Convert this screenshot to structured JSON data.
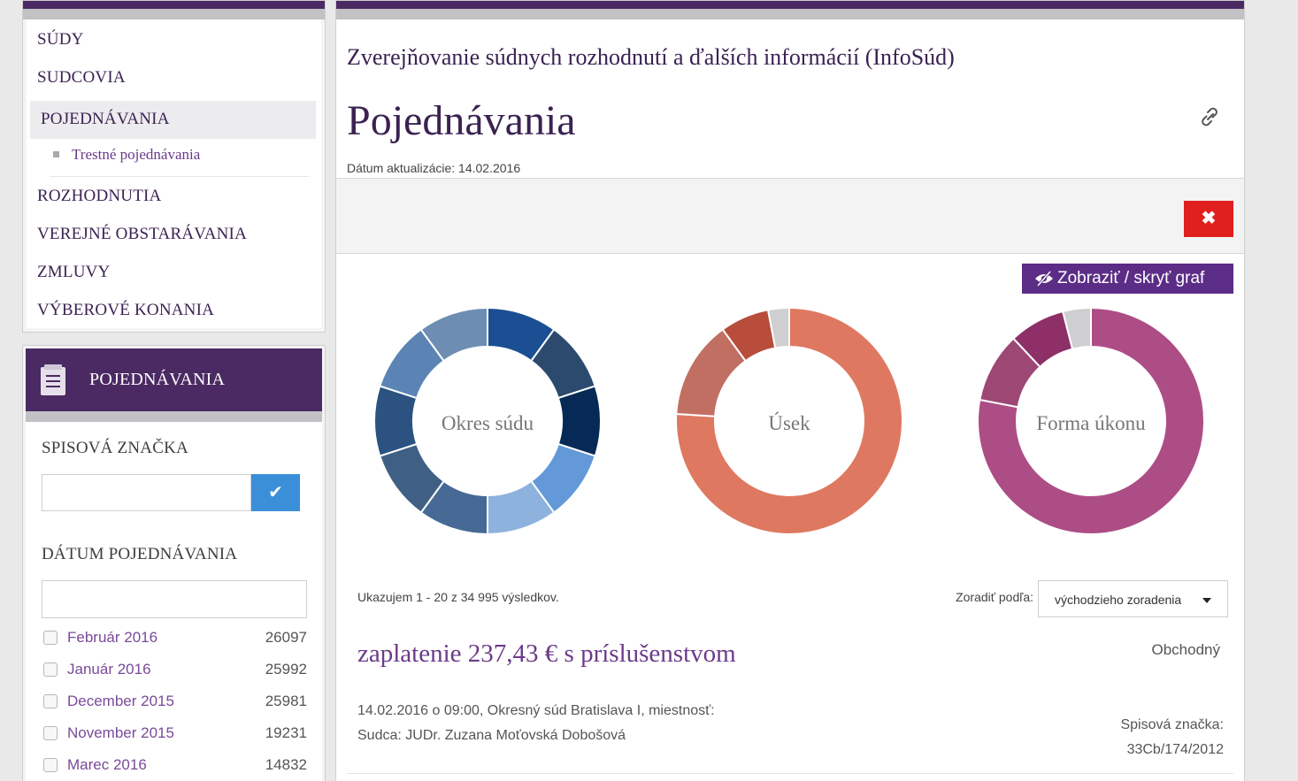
{
  "nav": {
    "items": [
      "SÚDY",
      "SUDCOVIA",
      "POJEDNÁVANIA",
      "ROZHODNUTIA",
      "VEREJNÉ OBSTARÁVANIA",
      "ZMLUVY",
      "VÝBEROVÉ KONANIA"
    ],
    "active_index": 2,
    "subitem": "Trestné pojednávania"
  },
  "filters": {
    "panel_title": "POJEDNÁVANIA",
    "spis_label": "SPISOVÁ ZNAČKA",
    "spis_value": "",
    "date_label": "DÁTUM POJEDNÁVANIA",
    "date_value": "",
    "facets": [
      {
        "label": "Február 2016",
        "count": "26097",
        "checked": false
      },
      {
        "label": "Január 2016",
        "count": "25992",
        "checked": false
      },
      {
        "label": "December 2015",
        "count": "25981",
        "checked": false
      },
      {
        "label": "November 2015",
        "count": "19231",
        "checked": false
      },
      {
        "label": "Marec 2016",
        "count": "14832",
        "checked": false
      }
    ]
  },
  "header": {
    "subtitle": "Zverejňovanie súdnych rozhodnutí a ďalších informácií (InfoSúd)",
    "title": "Pojednávania",
    "updated": "Dátum aktualizácie: 14.02.2016"
  },
  "toolbar": {
    "close_symbol": "✖",
    "toggle_graph_label": "Zobraziť / skryť graf"
  },
  "charts": [
    {
      "label": "Okres súdu",
      "colors": [
        "#1a4f94",
        "#2c4a6e",
        "#062a55",
        "#6399d8",
        "#8eb2de",
        "#466a95",
        "#3f5f84",
        "#2b5280",
        "#5b84b5",
        "#6e8db3"
      ],
      "values": [
        10,
        10,
        10,
        10,
        10,
        10,
        10,
        10,
        10,
        10
      ]
    },
    {
      "label": "Úsek",
      "colors": [
        "#df7861",
        "#c26f63",
        "#b84d3b",
        "#cfcfd1"
      ],
      "values": [
        76,
        14,
        7,
        3
      ]
    },
    {
      "label": "Forma úkonu",
      "colors": [
        "#ad4d86",
        "#9d4775",
        "#8e2f67",
        "#cfcfd1"
      ],
      "values": [
        78,
        10,
        8,
        4
      ]
    }
  ],
  "results": {
    "count_text": "Ukazujem 1 - 20 z 34 995 výsledkov.",
    "sort_label": "Zoradiť podľa:",
    "sort_value": "východzieho zoradenia",
    "items": [
      {
        "title": "zaplatenie 237,43 € s príslušenstvom",
        "type": "Obchodný",
        "line1": "14.02.2016 o 09:00, Okresný súd Bratislava I, miestnosť:",
        "line2": "Sudca: JUDr. Zuzana Moťovská Dobošová",
        "spis_label": "Spisová značka:",
        "spis_value": "33Cb/174/2012"
      }
    ]
  }
}
